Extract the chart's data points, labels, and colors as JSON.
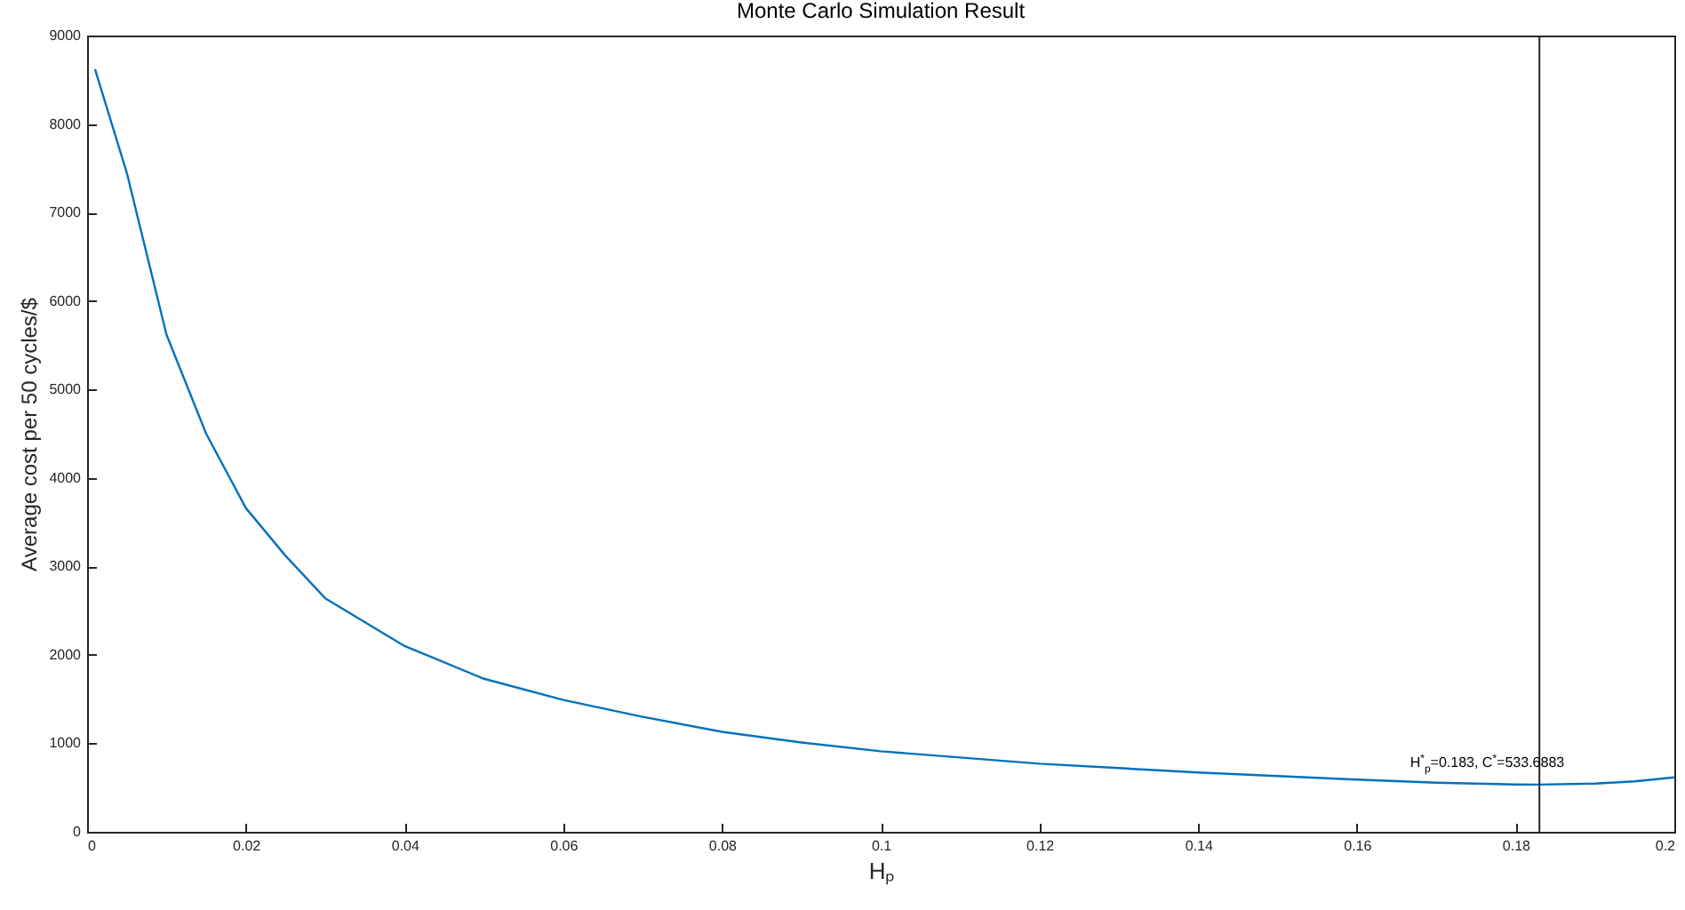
{
  "chart_data": {
    "type": "line",
    "title": "Monte Carlo Simulation Result",
    "xlabel": "Hₚ",
    "ylabel": "Average cost per 50 cycles/$",
    "x": [
      0.001,
      0.005,
      0.01,
      0.015,
      0.02,
      0.025,
      0.03,
      0.04,
      0.05,
      0.06,
      0.07,
      0.08,
      0.09,
      0.1,
      0.11,
      0.12,
      0.13,
      0.14,
      0.15,
      0.16,
      0.17,
      0.18,
      0.183,
      0.19,
      0.195,
      0.2
    ],
    "series": [
      {
        "color": "#0072bd",
        "values": [
          8620,
          7450,
          5620,
          4500,
          3660,
          3120,
          2640,
          2100,
          1730,
          1490,
          1300,
          1130,
          1010,
          910,
          840,
          770,
          720,
          670,
          630,
          590,
          555,
          535,
          533.7,
          545,
          570,
          615
        ]
      }
    ],
    "xlim": [
      0,
      0.2
    ],
    "xticks": [
      0,
      0.02,
      0.04,
      0.06,
      0.08,
      0.1,
      0.12,
      0.14,
      0.16,
      0.18,
      0.2
    ],
    "ylim": [
      0,
      9000
    ],
    "yticks": [
      0,
      1000,
      2000,
      3000,
      4000,
      5000,
      6000,
      7000,
      8000,
      9000
    ],
    "ref_lines": [
      {
        "axis": "x",
        "value": 0.183,
        "color": "#262626"
      }
    ],
    "annotations": [
      {
        "text": "H$^{*}$$_{p}$=0.183, C$^{*}$=533.6883",
        "x": 0.183,
        "y": 533.6883
      }
    ],
    "grid": false,
    "marker": "none",
    "line_style": "solid"
  }
}
